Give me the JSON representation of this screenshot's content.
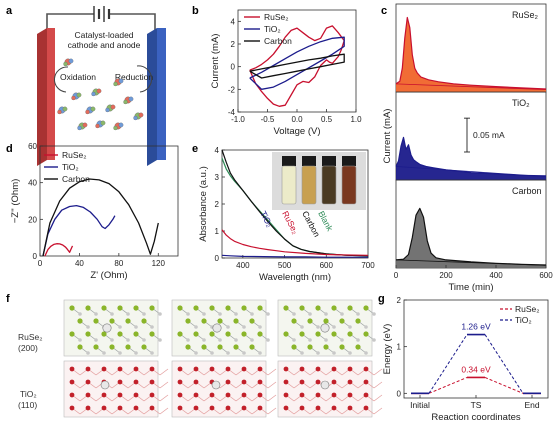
{
  "colors": {
    "ruse2": "#c8102e",
    "tio2": "#1c1c8c",
    "carbon": "#111111",
    "anode": "#d44a4a",
    "cathode": "#3b62c0",
    "ruse2_fill": "#f0642a",
    "tio2_fill": "#1a1a8a",
    "carbon_fill": "#6b6b6b",
    "blank": "#2e8b57"
  },
  "panels": {
    "a": {
      "letter": "a",
      "caption_line1": "Catalyst-loaded",
      "caption_line2": "cathode and anode",
      "left_label": "Oxidation",
      "right_label": "Reduction"
    },
    "b": {
      "letter": "b"
    },
    "c": {
      "letter": "c",
      "labels": [
        "RuSe₂",
        "TiO₂",
        "Carbon"
      ],
      "scale_bar": "0.05 mA"
    },
    "d": {
      "letter": "d"
    },
    "e": {
      "letter": "e",
      "vial_labels": [
        "TiO₂",
        "RuSe₂",
        "Carbon",
        "Blank"
      ]
    },
    "f": {
      "letter": "f",
      "row1_label_a": "RuSe₂",
      "row1_label_b": "(200)",
      "row2_label_a": "TiO₂",
      "row2_label_b": "(110)"
    },
    "g": {
      "letter": "g"
    }
  },
  "chart_data": [
    {
      "id": "b",
      "type": "line",
      "xlabel": "Voltage (V)",
      "ylabel": "Current (mA)",
      "xlim": [
        -1.0,
        1.0
      ],
      "ylim": [
        -4,
        5
      ],
      "xticks": [
        -1.0,
        -0.5,
        0.0,
        0.5,
        1.0
      ],
      "xtick_labels": [
        "-1.0",
        "-0.5",
        "0.0",
        "0.5",
        "1.0"
      ],
      "yticks": [
        -4,
        -2,
        0,
        2,
        4
      ],
      "legend": "top-left",
      "series": [
        {
          "name": "RuSe₂",
          "color": "ruse2",
          "x": [
            -0.8,
            -0.7,
            -0.6,
            -0.5,
            -0.4,
            -0.3,
            -0.2,
            -0.1,
            0.0,
            0.1,
            0.2,
            0.3,
            0.4,
            0.5,
            0.6,
            0.7,
            0.8,
            0.75,
            0.7,
            0.6,
            0.55,
            0.5,
            0.4,
            0.3,
            0.2,
            0.1,
            0.0,
            -0.1,
            -0.2,
            -0.3,
            -0.4,
            -0.5,
            -0.6,
            -0.7,
            -0.8
          ],
          "y": [
            -0.3,
            -0.1,
            0.2,
            0.6,
            1.1,
            1.8,
            2.6,
            3.2,
            3.4,
            3.0,
            2.6,
            2.3,
            2.5,
            3.4,
            3.6,
            3.0,
            2.3,
            1.5,
            0.9,
            0.3,
            0.4,
            0.6,
            0.1,
            -0.9,
            -1.4,
            -1.3,
            -1.6,
            -2.5,
            -3.4,
            -3.5,
            -3.3,
            -2.8,
            -2.2,
            -1.5,
            -0.3
          ]
        },
        {
          "name": "TiO₂",
          "color": "tio2",
          "x": [
            -0.8,
            -0.6,
            -0.4,
            -0.2,
            0.0,
            0.2,
            0.4,
            0.6,
            0.8,
            0.8,
            0.6,
            0.4,
            0.2,
            0.0,
            -0.2,
            -0.4,
            -0.6,
            -0.8
          ],
          "y": [
            -1.0,
            -0.5,
            0.1,
            0.7,
            1.3,
            1.8,
            2.2,
            2.5,
            2.6,
            1.8,
            1.1,
            0.5,
            -0.1,
            -0.7,
            -1.3,
            -1.8,
            -2.0,
            -1.0
          ]
        },
        {
          "name": "Carbon",
          "color": "carbon",
          "x": [
            -0.8,
            -0.6,
            -0.4,
            -0.2,
            0.0,
            0.2,
            0.4,
            0.6,
            0.8,
            0.8,
            0.6,
            0.4,
            0.2,
            0.0,
            -0.2,
            -0.4,
            -0.6,
            -0.8
          ],
          "y": [
            -0.4,
            -0.2,
            0.0,
            0.2,
            0.4,
            0.6,
            0.75,
            0.95,
            1.1,
            0.4,
            0.2,
            0.0,
            -0.2,
            -0.4,
            -0.6,
            -0.8,
            -1.0,
            -0.4
          ]
        }
      ]
    },
    {
      "id": "c",
      "type": "area",
      "xlabel": "Time (min)",
      "ylabel": "Current (mA)",
      "xlim": [
        0,
        600
      ],
      "xticks": [
        0,
        200,
        400,
        600
      ],
      "ylim": [
        0,
        0.13
      ],
      "scale_bar_value": 0.05,
      "series": [
        {
          "name": "RuSe₂",
          "color": "ruse2",
          "fill": "ruse2_fill",
          "base_x": [
            0,
            600
          ],
          "base_y": [
            0.012,
            0.0035
          ],
          "x": [
            0,
            15,
            25,
            35,
            45,
            55,
            65,
            75,
            85,
            100,
            130,
            170,
            230,
            300,
            400,
            500,
            600
          ],
          "y": [
            0.012,
            0.016,
            0.035,
            0.08,
            0.11,
            0.095,
            0.055,
            0.035,
            0.028,
            0.022,
            0.018,
            0.015,
            0.012,
            0.01,
            0.008,
            0.006,
            0.0045
          ]
        },
        {
          "name": "TiO₂",
          "color": "tio2",
          "fill": "tio2_fill",
          "base_x": [
            0,
            600
          ],
          "base_y": [
            0.02,
            0.005
          ],
          "x": [
            0,
            10,
            20,
            30,
            40,
            50,
            60,
            70,
            80,
            95,
            120,
            150,
            200,
            300,
            400,
            500,
            600
          ],
          "y": [
            0.02,
            0.028,
            0.05,
            0.063,
            0.045,
            0.052,
            0.037,
            0.03,
            0.027,
            0.023,
            0.02,
            0.018,
            0.015,
            0.011,
            0.009,
            0.007,
            0.006
          ]
        },
        {
          "name": "Carbon",
          "color": "carbon",
          "fill": "carbon_fill",
          "base_x": [
            0,
            600
          ],
          "base_y": [
            0.012,
            0.004
          ],
          "x": [
            0,
            30,
            50,
            65,
            80,
            95,
            110,
            125,
            140,
            160,
            200,
            300,
            400,
            500,
            600
          ],
          "y": [
            0.012,
            0.013,
            0.02,
            0.045,
            0.078,
            0.088,
            0.075,
            0.04,
            0.022,
            0.015,
            0.012,
            0.009,
            0.007,
            0.0055,
            0.0045
          ]
        }
      ]
    },
    {
      "id": "d",
      "type": "line",
      "xlabel": "Z' (Ohm)",
      "ylabel": "−Z'' (Ohm)",
      "xlim": [
        0,
        140
      ],
      "ylim": [
        0,
        60
      ],
      "xticks": [
        0,
        40,
        80,
        120
      ],
      "yticks": [
        0,
        20,
        40,
        60
      ],
      "legend": "top-left",
      "series": [
        {
          "name": "RuSe₂",
          "color": "ruse2",
          "x": [
            5,
            8,
            11,
            14,
            17,
            20,
            23,
            26,
            28,
            30,
            33
          ],
          "y": [
            0,
            3.5,
            5.3,
            6.3,
            6.7,
            6.6,
            6.0,
            4.8,
            3.5,
            2.0,
            5.5
          ]
        },
        {
          "name": "TiO₂",
          "color": "tio2",
          "x": [
            3,
            8,
            15,
            22,
            30,
            37,
            44,
            51,
            58,
            63,
            66,
            70,
            74,
            76
          ],
          "y": [
            0,
            12,
            20,
            25,
            27,
            27.5,
            26.5,
            24,
            20,
            16,
            15,
            17,
            20,
            22
          ]
        },
        {
          "name": "Carbon",
          "color": "carbon",
          "x": [
            3,
            10,
            20,
            30,
            40,
            50,
            60,
            70,
            80,
            90,
            100,
            108,
            112,
            116,
            120
          ],
          "y": [
            0,
            18,
            30,
            37,
            40.5,
            42,
            41.5,
            39.5,
            35,
            28,
            18,
            7,
            1,
            8,
            18
          ]
        }
      ]
    },
    {
      "id": "e",
      "type": "line",
      "xlabel": "Wavelength (nm)",
      "ylabel": "Absorbance (a.u.)",
      "xlim": [
        350,
        700
      ],
      "ylim": [
        0,
        4
      ],
      "xticks": [
        400,
        500,
        600,
        700
      ],
      "yticks": [
        0,
        1,
        2,
        3,
        4
      ],
      "series": [
        {
          "name": "Blank",
          "color": "blank",
          "x": [
            350,
            360,
            370,
            380,
            400,
            420,
            440,
            460,
            480,
            500,
            520,
            540,
            560,
            600,
            650,
            700
          ],
          "y": [
            3.7,
            3.3,
            3.05,
            2.85,
            2.5,
            2.1,
            1.75,
            1.4,
            1.05,
            0.7,
            0.45,
            0.32,
            0.24,
            0.15,
            0.1,
            0.08
          ]
        },
        {
          "name": "Carbon",
          "color": "carbon",
          "x": [
            350,
            360,
            370,
            380,
            400,
            420,
            440,
            460,
            480,
            500,
            520,
            540,
            560,
            600,
            650,
            700
          ],
          "y": [
            4.0,
            3.55,
            3.15,
            2.9,
            2.5,
            2.1,
            1.72,
            1.35,
            1.0,
            0.7,
            0.45,
            0.32,
            0.24,
            0.15,
            0.1,
            0.08
          ]
        },
        {
          "name": "RuSe₂",
          "color": "ruse2",
          "x": [
            350,
            360,
            370,
            380,
            400,
            420,
            440,
            460,
            480,
            500,
            550,
            600,
            650,
            700
          ],
          "y": [
            1.05,
            0.85,
            0.72,
            0.62,
            0.5,
            0.42,
            0.36,
            0.31,
            0.27,
            0.23,
            0.17,
            0.13,
            0.11,
            0.1
          ]
        },
        {
          "name": "TiO₂",
          "color": "tio2",
          "x": [
            350,
            370,
            400,
            450,
            500,
            550,
            600,
            650,
            700
          ],
          "y": [
            0.1,
            0.08,
            0.06,
            0.05,
            0.04,
            0.04,
            0.03,
            0.03,
            0.03
          ]
        }
      ]
    },
    {
      "id": "g",
      "type": "line",
      "xlabel": "Reaction coordinates",
      "ylabel": "Energy (eV)",
      "ylim": [
        -0.1,
        2.0
      ],
      "yticks": [
        0,
        1,
        2
      ],
      "categories": [
        "Initial",
        "TS",
        "End"
      ],
      "legend": "top-right",
      "annotations": [
        "1.26 eV",
        "0.34 eV"
      ],
      "series": [
        {
          "name": "RuSe₂",
          "color": "ruse2",
          "values": [
            0,
            0.34,
            0
          ]
        },
        {
          "name": "TiO₂",
          "color": "tio2",
          "values": [
            0,
            1.26,
            0
          ]
        }
      ]
    }
  ]
}
